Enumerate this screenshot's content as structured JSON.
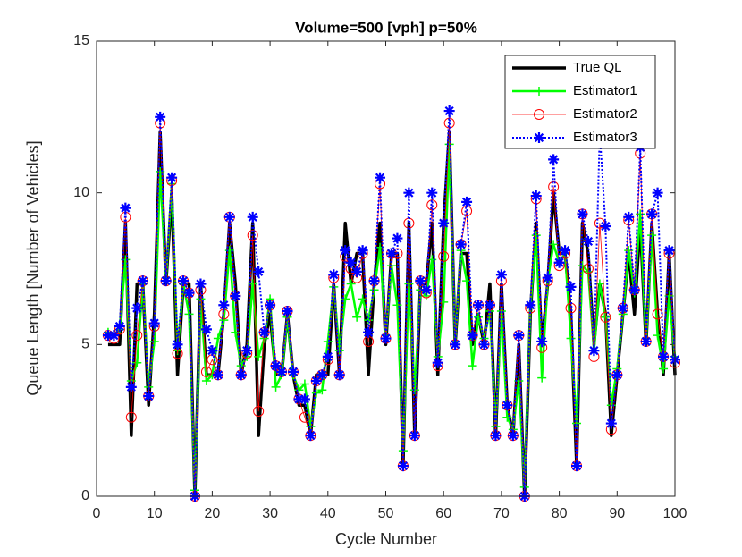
{
  "chart_data": {
    "type": "line",
    "title": "Volume=500 [vph] p=50%",
    "x_label": "Cycle Number",
    "y_label": "Queue Length [Number of Vehicles]",
    "xlim": [
      0,
      100
    ],
    "xticks": [
      0,
      10,
      20,
      30,
      40,
      50,
      60,
      70,
      80,
      90,
      100
    ],
    "ylim": [
      0,
      15
    ],
    "yticks": [
      0,
      5,
      10,
      15
    ],
    "legend": "upper right",
    "x": [
      2,
      3,
      4,
      5,
      6,
      7,
      8,
      9,
      10,
      11,
      12,
      13,
      14,
      15,
      16,
      17,
      18,
      19,
      20,
      21,
      22,
      23,
      24,
      25,
      26,
      27,
      28,
      29,
      30,
      31,
      32,
      33,
      34,
      35,
      36,
      37,
      38,
      39,
      40,
      41,
      42,
      43,
      44,
      45,
      46,
      47,
      48,
      49,
      50,
      51,
      52,
      53,
      54,
      55,
      56,
      57,
      58,
      59,
      60,
      61,
      62,
      63,
      64,
      65,
      66,
      67,
      68,
      69,
      70,
      71,
      72,
      73,
      74,
      75,
      76,
      77,
      78,
      79,
      80,
      81,
      82,
      83,
      84,
      85,
      86,
      87,
      88,
      89,
      90,
      91,
      92,
      93,
      94,
      95,
      96,
      97,
      98,
      99,
      100
    ],
    "series": [
      {
        "name": "True QL",
        "color": "#000000",
        "marker": "none",
        "values": [
          5,
          5,
          5,
          9,
          2,
          7,
          7,
          3,
          6,
          12,
          7,
          10,
          4,
          7,
          7,
          0,
          7,
          4,
          4,
          4,
          6,
          9,
          7,
          4,
          5,
          9,
          2,
          5,
          6,
          4,
          4,
          6,
          4,
          3,
          3,
          2,
          4,
          4,
          4,
          7,
          4,
          9,
          7,
          8,
          8,
          4,
          7,
          9,
          5,
          8,
          8,
          1,
          9,
          2,
          7,
          7,
          9,
          4,
          9,
          12,
          5,
          8,
          8,
          5,
          6,
          5,
          7,
          2,
          7,
          3,
          2,
          5,
          0,
          6,
          9,
          5,
          7,
          10,
          8,
          8,
          6,
          1,
          9,
          8,
          5,
          7,
          6,
          2,
          4,
          6,
          8,
          6,
          9,
          5,
          9,
          6,
          4,
          8,
          4
        ]
      },
      {
        "name": "Estimator1",
        "color": "#00ff00",
        "marker": "plus",
        "values": [
          5.4,
          5.3,
          5.5,
          7.8,
          3.8,
          4.4,
          7.0,
          3.6,
          5.1,
          10.7,
          7.1,
          10.3,
          4.8,
          7.0,
          6.0,
          0.2,
          6.5,
          3.8,
          4.0,
          5.2,
          5.8,
          8.1,
          5.4,
          4.3,
          4.6,
          7.0,
          4.6,
          5.2,
          6.5,
          3.6,
          4.0,
          5.9,
          4.0,
          3.5,
          3.7,
          2.3,
          3.4,
          3.5,
          5.1,
          6.9,
          4.8,
          6.5,
          7.0,
          5.9,
          6.5,
          5.8,
          6.8,
          8.2,
          5.3,
          7.6,
          6.3,
          1.5,
          7.0,
          3.5,
          6.8,
          6.6,
          7.8,
          4.6,
          6.4,
          11.6,
          5.1,
          8.1,
          7.1,
          4.3,
          5.9,
          5.2,
          6.1,
          2.3,
          6.1,
          2.6,
          2.2,
          3.8,
          0.3,
          6.2,
          8.6,
          3.9,
          7.1,
          8.3,
          7.7,
          8.0,
          5.2,
          2.4,
          7.6,
          7.4,
          4.8,
          7.0,
          5.9,
          3.0,
          4.2,
          6.0,
          8.1,
          6.7,
          9.3,
          5.1,
          8.6,
          5.3,
          4.2,
          6.6,
          4.6
        ]
      },
      {
        "name": "Estimator2",
        "color": "#ff0000",
        "marker": "circle",
        "values": [
          5.3,
          5.2,
          5.5,
          9.2,
          2.6,
          5.3,
          7.1,
          3.3,
          5.6,
          12.3,
          7.1,
          10.4,
          4.7,
          7.1,
          6.7,
          0,
          6.8,
          4.1,
          4.5,
          4.0,
          6.0,
          9.2,
          6.6,
          4.0,
          4.7,
          8.6,
          2.8,
          5.4,
          6.3,
          4.3,
          4.1,
          6.1,
          4.1,
          3.2,
          2.6,
          2.0,
          3.8,
          4.0,
          4.5,
          7.2,
          4.0,
          7.9,
          7.5,
          7.2,
          8.0,
          5.1,
          7.1,
          10.3,
          5.2,
          8.0,
          8.0,
          1.0,
          9.0,
          2.0,
          7.1,
          6.7,
          9.6,
          4.3,
          7.9,
          12.3,
          5.0,
          8.3,
          9.4,
          5.3,
          6.3,
          5.0,
          6.3,
          2.0,
          7.1,
          3.0,
          2.0,
          5.3,
          0,
          6.2,
          9.8,
          4.9,
          7.1,
          10.2,
          7.6,
          8.0,
          6.2,
          1.0,
          9.3,
          7.5,
          4.6,
          9.0,
          5.9,
          2.2,
          4.0,
          6.2,
          9.1,
          6.8,
          11.3,
          5.1,
          9.3,
          6.0,
          4.6,
          8.0,
          4.4
        ]
      },
      {
        "name": "Estimator3",
        "color": "#0000ff",
        "marker": "star",
        "values": [
          5.3,
          5.3,
          5.6,
          9.5,
          3.6,
          6.2,
          7.1,
          3.3,
          5.7,
          12.5,
          7.1,
          10.5,
          5.0,
          7.1,
          6.7,
          0,
          7.0,
          5.5,
          4.8,
          4.0,
          6.3,
          9.2,
          6.6,
          4.0,
          4.8,
          9.2,
          7.4,
          5.4,
          6.3,
          4.3,
          4.1,
          6.1,
          4.1,
          3.2,
          3.2,
          2.0,
          3.8,
          4.0,
          4.6,
          7.3,
          4.0,
          8.1,
          7.7,
          7.4,
          8.1,
          5.4,
          7.1,
          10.5,
          5.2,
          8.0,
          8.5,
          1.0,
          10.0,
          2.0,
          7.1,
          6.8,
          10.0,
          4.4,
          9.0,
          12.7,
          5.0,
          8.3,
          9.7,
          5.3,
          6.3,
          5.0,
          6.3,
          2.0,
          7.3,
          3.0,
          2.0,
          5.3,
          0,
          6.3,
          9.9,
          5.1,
          7.2,
          11.1,
          7.7,
          8.1,
          6.9,
          1.0,
          9.3,
          8.4,
          4.8,
          12.0,
          8.9,
          2.4,
          4.0,
          6.2,
          9.2,
          6.8,
          11.5,
          5.1,
          9.3,
          10.0,
          4.6,
          8.1,
          4.5
        ]
      }
    ]
  }
}
